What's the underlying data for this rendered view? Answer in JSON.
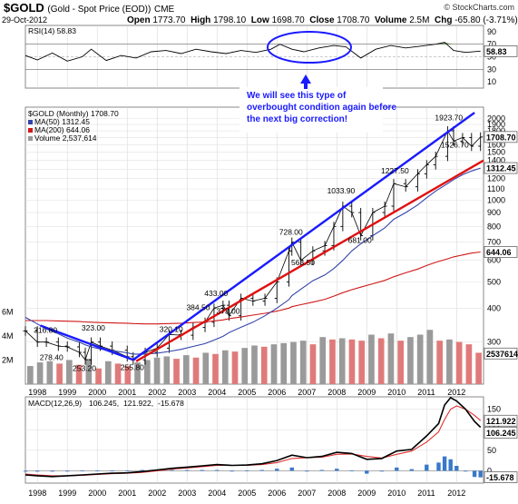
{
  "header": {
    "symbol": "$GOLD",
    "name": "(Gold - Spot Price (EOD))",
    "exchange": "CME",
    "brand": "© StockCharts.com",
    "date": "29-Oct-2012",
    "open_label": "Open",
    "open": "1773.70",
    "high_label": "High",
    "high": "1798.10",
    "low_label": "Low",
    "low": "1698.70",
    "close_label": "Close",
    "close": "1708.70",
    "volume_label": "Volume",
    "volume": "2.5M",
    "chg_label": "Chg",
    "chg": "-65.80 (-3.71%)"
  },
  "annotation": {
    "lines": [
      "We will see this type of",
      "overbought condition again before",
      "the next big correction!"
    ]
  },
  "rsi_panel": {
    "legend": "RSI(14) 58.83",
    "value_box": "58.83",
    "ticks": [
      "90",
      "70",
      "50",
      "30",
      "10"
    ]
  },
  "price_panel": {
    "legend_title": "$GOLD (Monthly) 1708.70",
    "legend_ma50": "MA(50) 1312.45",
    "legend_ma200": "MA(200) 644.06",
    "legend_volume": "Volume 2,537,614",
    "close_box": "1708.70",
    "ma50_box": "1312.45",
    "ma200_box": "644.06",
    "volume_box": "2537614",
    "ticks": [
      "2000",
      "1900",
      "1800",
      "1700",
      "1600",
      "1500",
      "1400",
      "1300",
      "1200",
      "1100",
      "1000",
      "900",
      "800",
      "700",
      "600",
      "500",
      "400",
      "300"
    ],
    "volume_ticks": [
      "6M",
      "4M",
      "2M"
    ],
    "labels": [
      {
        "text": "316.80",
        "x": 1998.3,
        "y": 316.8
      },
      {
        "text": "278.40",
        "x": 1998.5,
        "y": 278.4
      },
      {
        "text": "323.00",
        "x": 1999.9,
        "y": 323.0
      },
      {
        "text": "253.20",
        "x": 1999.6,
        "y": 253.2
      },
      {
        "text": "255.80",
        "x": 2001.2,
        "y": 255.8
      },
      {
        "text": "320.10",
        "x": 2002.5,
        "y": 320.1
      },
      {
        "text": "384.50",
        "x": 2003.4,
        "y": 384.5
      },
      {
        "text": "433.00",
        "x": 2004.0,
        "y": 433.0
      },
      {
        "text": "373.00",
        "x": 2004.4,
        "y": 373.0
      },
      {
        "text": "728.00",
        "x": 2006.5,
        "y": 728.0
      },
      {
        "text": "563.50",
        "x": 2006.9,
        "y": 563.5
      },
      {
        "text": "1033.90",
        "x": 2008.1,
        "y": 1033.9
      },
      {
        "text": "681.00",
        "x": 2008.8,
        "y": 681.0
      },
      {
        "text": "1227.50",
        "x": 2009.9,
        "y": 1227.5
      },
      {
        "text": "1923.70",
        "x": 2011.7,
        "y": 1923.7
      },
      {
        "text": "1526.70",
        "x": 2011.9,
        "y": 1526.7
      }
    ]
  },
  "macd_panel": {
    "legend_label": "MACD(12,26,9)",
    "legend_macd": "106.245",
    "legend_signal": "121.922",
    "legend_hist": "-15.678",
    "box_signal": "121.922",
    "box_macd": "106.245",
    "box_hist": "-15.678",
    "ticks": [
      "150",
      "100",
      "50",
      "0"
    ]
  },
  "x_axis": {
    "years": [
      "1998",
      "1999",
      "2000",
      "2001",
      "2002",
      "2003",
      "2004",
      "2005",
      "2006",
      "2007",
      "2008",
      "2009",
      "2010",
      "2011",
      "2012"
    ]
  },
  "colors": {
    "up_channel": "#1a1aff",
    "support_line": "#e01010",
    "ma50": "#3344aa",
    "ma200": "#d01818",
    "macd": "#000000",
    "signal": "#e03030",
    "histogram": "#3a78c8",
    "volume_up": "#9a9a9a",
    "volume_down": "#e07a7a",
    "annotation_text": "#1a1aff",
    "rsi_fill": "#6b8e5a"
  },
  "chart_data": [
    {
      "type": "line",
      "title": "RSI(14)",
      "ylim": [
        0,
        100
      ],
      "x": [
        1997.6,
        1998.0,
        1998.5,
        1999.0,
        1999.5,
        1999.8,
        2000.3,
        2000.8,
        2001.3,
        2001.8,
        2002.3,
        2002.8,
        2003.3,
        2003.8,
        2004.3,
        2004.8,
        2005.3,
        2005.8,
        2006.1,
        2006.5,
        2006.9,
        2007.4,
        2007.9,
        2008.3,
        2008.8,
        2009.3,
        2009.8,
        2010.3,
        2010.8,
        2011.3,
        2011.6,
        2011.9,
        2012.3,
        2012.8
      ],
      "series": [
        {
          "name": "RSI(14)",
          "values": [
            52,
            45,
            56,
            43,
            50,
            62,
            44,
            52,
            48,
            58,
            60,
            55,
            62,
            58,
            55,
            60,
            57,
            62,
            70,
            62,
            58,
            64,
            68,
            66,
            48,
            62,
            68,
            64,
            67,
            70,
            73,
            60,
            57,
            59
          ]
        }
      ]
    },
    {
      "type": "line",
      "title": "$GOLD (Monthly)",
      "yscale": "log",
      "ylim": [
        210,
        2200
      ],
      "x": [
        1997.6,
        1998.0,
        1998.3,
        1998.7,
        1999.0,
        1999.4,
        1999.6,
        1999.8,
        2000.1,
        2000.5,
        2001.0,
        2001.2,
        2001.6,
        2002.0,
        2002.4,
        2002.8,
        2003.2,
        2003.6,
        2003.9,
        2004.2,
        2004.4,
        2004.8,
        2005.2,
        2005.6,
        2006.0,
        2006.4,
        2006.5,
        2006.8,
        2007.2,
        2007.6,
        2007.9,
        2008.2,
        2008.5,
        2008.8,
        2009.2,
        2009.6,
        2009.9,
        2010.3,
        2010.7,
        2011.0,
        2011.3,
        2011.7,
        2011.9,
        2012.2,
        2012.5,
        2012.8
      ],
      "series": [
        {
          "name": "$GOLD",
          "values": [
            330,
            300,
            300,
            290,
            288,
            275,
            258,
            300,
            290,
            280,
            265,
            258,
            275,
            285,
            320,
            318,
            340,
            355,
            400,
            410,
            375,
            435,
            425,
            435,
            500,
            650,
            700,
            600,
            650,
            680,
            800,
            950,
            900,
            740,
            900,
            950,
            1150,
            1120,
            1250,
            1350,
            1450,
            1800,
            1650,
            1700,
            1580,
            1708
          ]
        },
        {
          "name": "MA(50)",
          "values": [
            370,
            350,
            335,
            322,
            310,
            300,
            293,
            288,
            283,
            279,
            274,
            271,
            271,
            273,
            277,
            282,
            289,
            296,
            305,
            315,
            325,
            340,
            355,
            375,
            400,
            430,
            445,
            470,
            505,
            530,
            560,
            600,
            650,
            690,
            740,
            790,
            850,
            900,
            960,
            1020,
            1080,
            1150,
            1190,
            1240,
            1280,
            1312
          ]
        },
        {
          "name": "MA(200)",
          "values": [
            360,
            360,
            360,
            359,
            358,
            357,
            356,
            355,
            354,
            353,
            352,
            351,
            350,
            350,
            351,
            352,
            354,
            356,
            359,
            362,
            366,
            371,
            377,
            383,
            390,
            400,
            405,
            412,
            421,
            431,
            443,
            456,
            468,
            478,
            492,
            506,
            522,
            540,
            557,
            574,
            590,
            608,
            618,
            628,
            638,
            644
          ]
        }
      ]
    },
    {
      "type": "bar",
      "title": "Volume",
      "ylim": [
        0,
        7000000
      ],
      "x_range": [
        1997.6,
        2012.9
      ],
      "series": [
        {
          "name": "Volume",
          "values": [
            1500000,
            1800000,
            1900000,
            1700000,
            2000000,
            1600000,
            2100000,
            1300000,
            1900000,
            1700000,
            1500000,
            1800000,
            2000000,
            2200000,
            2300000,
            2100000,
            2400000,
            2200000,
            2600000,
            2500000,
            2800000,
            2700000,
            3000000,
            3200000,
            3100000,
            3300000,
            3400000,
            3500000,
            3600000,
            3300000,
            3900000,
            3700000,
            3800000,
            3700000,
            3600000,
            4100000,
            3800000,
            4200000,
            3600000,
            3900000,
            4100000,
            4500000,
            3600000,
            3700000,
            3500000,
            3300000,
            2600000
          ]
        }
      ]
    },
    {
      "type": "line",
      "title": "MACD(12,26,9)",
      "ylim": [
        -30,
        180
      ],
      "x": [
        1997.6,
        1998.0,
        1998.5,
        1999.0,
        1999.5,
        2000.0,
        2000.5,
        2001.0,
        2001.5,
        2002.0,
        2002.5,
        2003.0,
        2003.5,
        2004.0,
        2004.5,
        2005.0,
        2005.5,
        2006.0,
        2006.5,
        2007.0,
        2007.5,
        2008.0,
        2008.5,
        2009.0,
        2009.5,
        2010.0,
        2010.5,
        2011.0,
        2011.4,
        2011.6,
        2011.8,
        2012.0,
        2012.3,
        2012.6,
        2012.8
      ],
      "series": [
        {
          "name": "MACD",
          "values": [
            -10,
            -12,
            -14,
            -12,
            -10,
            -8,
            -6,
            -5,
            -2,
            2,
            6,
            9,
            12,
            15,
            13,
            14,
            17,
            25,
            38,
            32,
            35,
            45,
            42,
            28,
            30,
            48,
            52,
            85,
            115,
            160,
            178,
            170,
            150,
            120,
            106
          ]
        },
        {
          "name": "Signal",
          "values": [
            -8,
            -10,
            -12,
            -12,
            -11,
            -9,
            -7,
            -6,
            -4,
            0,
            4,
            7,
            10,
            13,
            13,
            13,
            15,
            20,
            30,
            32,
            33,
            40,
            41,
            35,
            31,
            40,
            48,
            70,
            95,
            125,
            150,
            158,
            150,
            135,
            122
          ]
        },
        {
          "name": "Histogram",
          "values": [
            -2,
            -2,
            -2,
            0,
            1,
            1,
            1,
            1,
            2,
            2,
            2,
            2,
            2,
            2,
            0,
            1,
            2,
            5,
            8,
            0,
            2,
            5,
            1,
            -7,
            -1,
            8,
            4,
            15,
            20,
            35,
            28,
            12,
            0,
            -15,
            -16
          ]
        }
      ]
    }
  ]
}
